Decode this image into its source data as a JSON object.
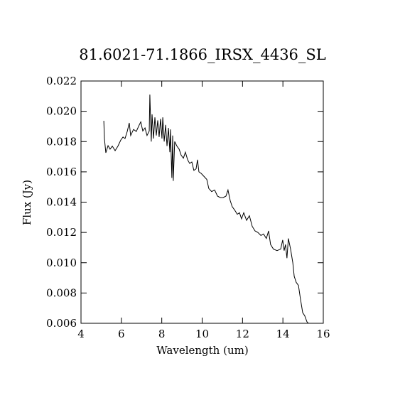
{
  "chart_data": {
    "type": "line",
    "title": "81.6021-71.1866_IRSX_4436_SL",
    "x_label": "Wavelength (um)",
    "y_label": "Flux (Jy)",
    "xlim": [
      4,
      16
    ],
    "xticks": [
      4,
      6,
      8,
      10,
      12,
      14,
      16
    ],
    "ylim": [
      0.006,
      0.022
    ],
    "yticks": [
      0.006,
      0.008,
      {
        "value": 0.01,
        "label": "0.010"
      },
      0.012,
      0.014,
      0.016,
      0.018,
      {
        "value": 0.02,
        "label": "0.020"
      },
      0.022
    ],
    "color": "#000000",
    "x": [
      5.13,
      5.16,
      5.23,
      5.34,
      5.44,
      5.55,
      5.69,
      5.83,
      5.97,
      6.08,
      6.18,
      6.29,
      6.39,
      6.46,
      6.6,
      6.74,
      6.85,
      6.96,
      7.06,
      7.17,
      7.27,
      7.38,
      7.41,
      7.48,
      7.52,
      7.59,
      7.66,
      7.73,
      7.8,
      7.87,
      7.94,
      8.01,
      8.05,
      8.12,
      8.19,
      8.26,
      8.33,
      8.4,
      8.43,
      8.5,
      8.54,
      8.57,
      8.64,
      8.75,
      8.86,
      8.96,
      9.07,
      9.17,
      9.28,
      9.38,
      9.49,
      9.59,
      9.7,
      9.77,
      9.84,
      9.95,
      10.09,
      10.23,
      10.33,
      10.47,
      10.62,
      10.76,
      10.9,
      11.04,
      11.18,
      11.28,
      11.39,
      11.49,
      11.6,
      11.74,
      11.85,
      11.95,
      12.06,
      12.2,
      12.34,
      12.48,
      12.62,
      12.76,
      12.91,
      13.04,
      13.18,
      13.29,
      13.39,
      13.53,
      13.71,
      13.89,
      13.99,
      14.06,
      14.13,
      14.2,
      14.27,
      14.38,
      14.49,
      14.56,
      14.66,
      14.77,
      14.87,
      14.98,
      15.08,
      15.19,
      15.26
    ],
    "values": [
      0.01937,
      0.0182,
      0.01726,
      0.01773,
      0.0175,
      0.0177,
      0.0174,
      0.0177,
      0.0181,
      0.0183,
      0.0182,
      0.01867,
      0.01923,
      0.0184,
      0.0188,
      0.01867,
      0.019,
      0.0193,
      0.0187,
      0.0189,
      0.0184,
      0.0187,
      0.0211,
      0.018,
      0.0198,
      0.0182,
      0.0196,
      0.0184,
      0.0194,
      0.0183,
      0.0195,
      0.0182,
      0.0196,
      0.018,
      0.0191,
      0.0177,
      0.0189,
      0.0173,
      0.0188,
      0.0156,
      0.0184,
      0.0154,
      0.018,
      0.0177,
      0.0175,
      0.0171,
      0.0169,
      0.0173,
      0.0168,
      0.01656,
      0.01665,
      0.0161,
      0.0162,
      0.0168,
      0.016,
      0.0159,
      0.0157,
      0.0155,
      0.0149,
      0.0147,
      0.0148,
      0.0144,
      0.0143,
      0.0143,
      0.0144,
      0.0148,
      0.0141,
      0.0137,
      0.0135,
      0.0132,
      0.0133,
      0.0129,
      0.0133,
      0.0128,
      0.0131,
      0.0124,
      0.0121,
      0.012,
      0.0118,
      0.0119,
      0.0116,
      0.0121,
      0.0112,
      0.0109,
      0.0108,
      0.0109,
      0.0115,
      0.0108,
      0.0112,
      0.0103,
      0.0116,
      0.0109,
      0.01,
      0.0091,
      0.0087,
      0.0085,
      0.0076,
      0.0067,
      0.0065,
      0.0061,
      0.006
    ]
  }
}
